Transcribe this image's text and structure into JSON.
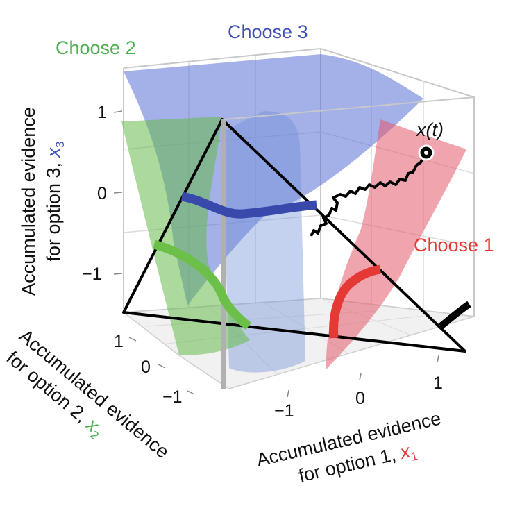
{
  "regions": {
    "choose2": {
      "label": "Choose 2",
      "color": "#4caf50"
    },
    "choose3": {
      "label": "Choose 3",
      "color": "#3f51b5"
    },
    "choose1": {
      "label": "Choose 1",
      "color": "#e53935"
    }
  },
  "trajectory_label": {
    "base": "x",
    "arg": "(t)"
  },
  "axes": {
    "x3": {
      "line1": "Accumulated evidence",
      "line2": "for option 3, ",
      "var": "x",
      "sub": "3",
      "ticks": [
        "1",
        "0",
        "−1"
      ]
    },
    "x2": {
      "line1": "Accumulated evidence",
      "line2": "for option 2, ",
      "var": "x",
      "sub": "2",
      "ticks": [
        "1",
        "0",
        "−1"
      ]
    },
    "x1": {
      "line1": "Accumulated evidence",
      "line2": "for option 1, ",
      "var": "x",
      "sub": "1",
      "ticks": [
        "−1",
        "0",
        "1"
      ]
    }
  }
}
